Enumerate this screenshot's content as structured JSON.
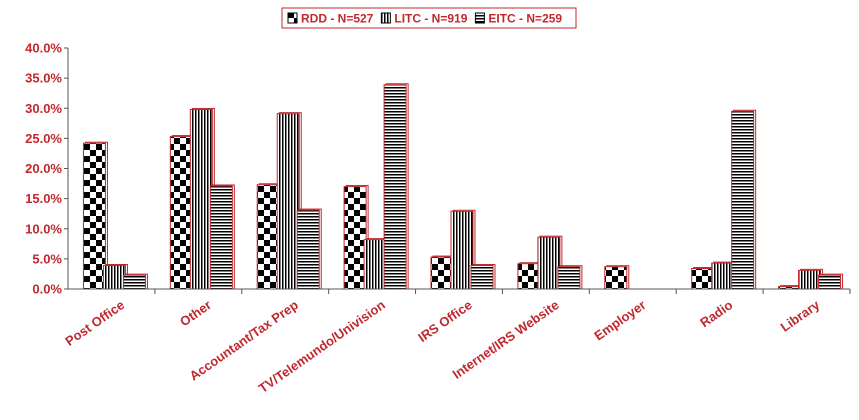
{
  "chart_data": {
    "type": "bar",
    "categories": [
      "Post Office",
      "Other",
      "Accountant/Tax Prep",
      "TV/Telemundo/Univision",
      "IRS Office",
      "Internet/IRS Website",
      "Employer",
      "Radio",
      "Library"
    ],
    "series": [
      {
        "name": "RDD - N=527",
        "pattern": "checker",
        "values": [
          24.2,
          25.3,
          17.3,
          17.0,
          5.3,
          4.2,
          3.7,
          3.4,
          0.4
        ]
      },
      {
        "name": "LITC - N=919",
        "pattern": "vertical",
        "values": [
          3.9,
          29.8,
          29.1,
          8.2,
          12.9,
          8.6,
          null,
          4.3,
          3.1
        ]
      },
      {
        "name": "EITC - N=259",
        "pattern": "horizontal",
        "values": [
          2.3,
          17.1,
          13.1,
          33.9,
          3.9,
          3.7,
          null,
          29.5,
          2.3
        ]
      }
    ],
    "ylim": [
      0,
      40
    ],
    "yticks": [
      "0.0%",
      "5.0%",
      "10.0%",
      "15.0%",
      "20.0%",
      "25.0%",
      "30.0%",
      "35.0%",
      "40.0%"
    ],
    "grid": false,
    "legend_position": "top",
    "colors": {
      "bar_outline": "#c0282e",
      "text": "#c0282e",
      "axis": "#555555",
      "pattern": "#000000"
    }
  }
}
